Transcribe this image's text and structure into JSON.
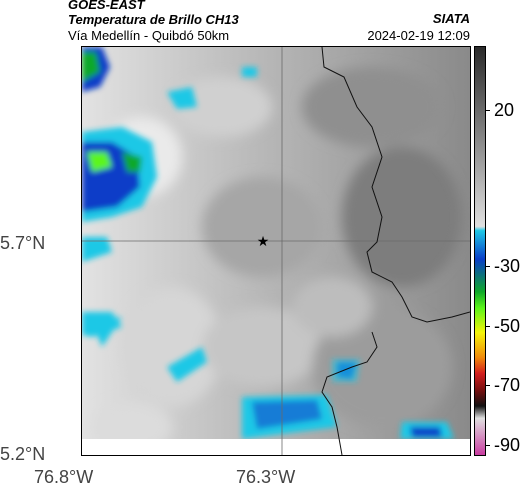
{
  "header": {
    "title_main": "GOES-EAST",
    "title_sub": "Temperatura de Brillo CH13",
    "location": "Vía Medellín - Quibdó 50km",
    "org": "SIATA",
    "timestamp": "2024-02-19 12:09"
  },
  "axes": {
    "y_labels": [
      "5.7°N",
      "5.2°N"
    ],
    "x_labels": [
      "76.8°W",
      "76.3°W"
    ]
  },
  "colorbar": {
    "labels": [
      "20",
      "-30",
      "-50",
      "-70",
      "-90"
    ],
    "colors": {
      "warm_dark": "#2a2a2a",
      "warm_light": "#e0e0e0",
      "cyan": "#1ec8e6",
      "blue": "#0a3ec8",
      "green": "#0fa82a",
      "lime": "#5cf51a",
      "yellow": "#f5f50a",
      "orange": "#f08c0a",
      "red": "#d21e1e",
      "dark_red": "#7a1010",
      "black": "#111111",
      "magenta": "#c83ca0"
    }
  },
  "map": {
    "marker_icon": "star-icon",
    "marker_symbol": "★"
  }
}
